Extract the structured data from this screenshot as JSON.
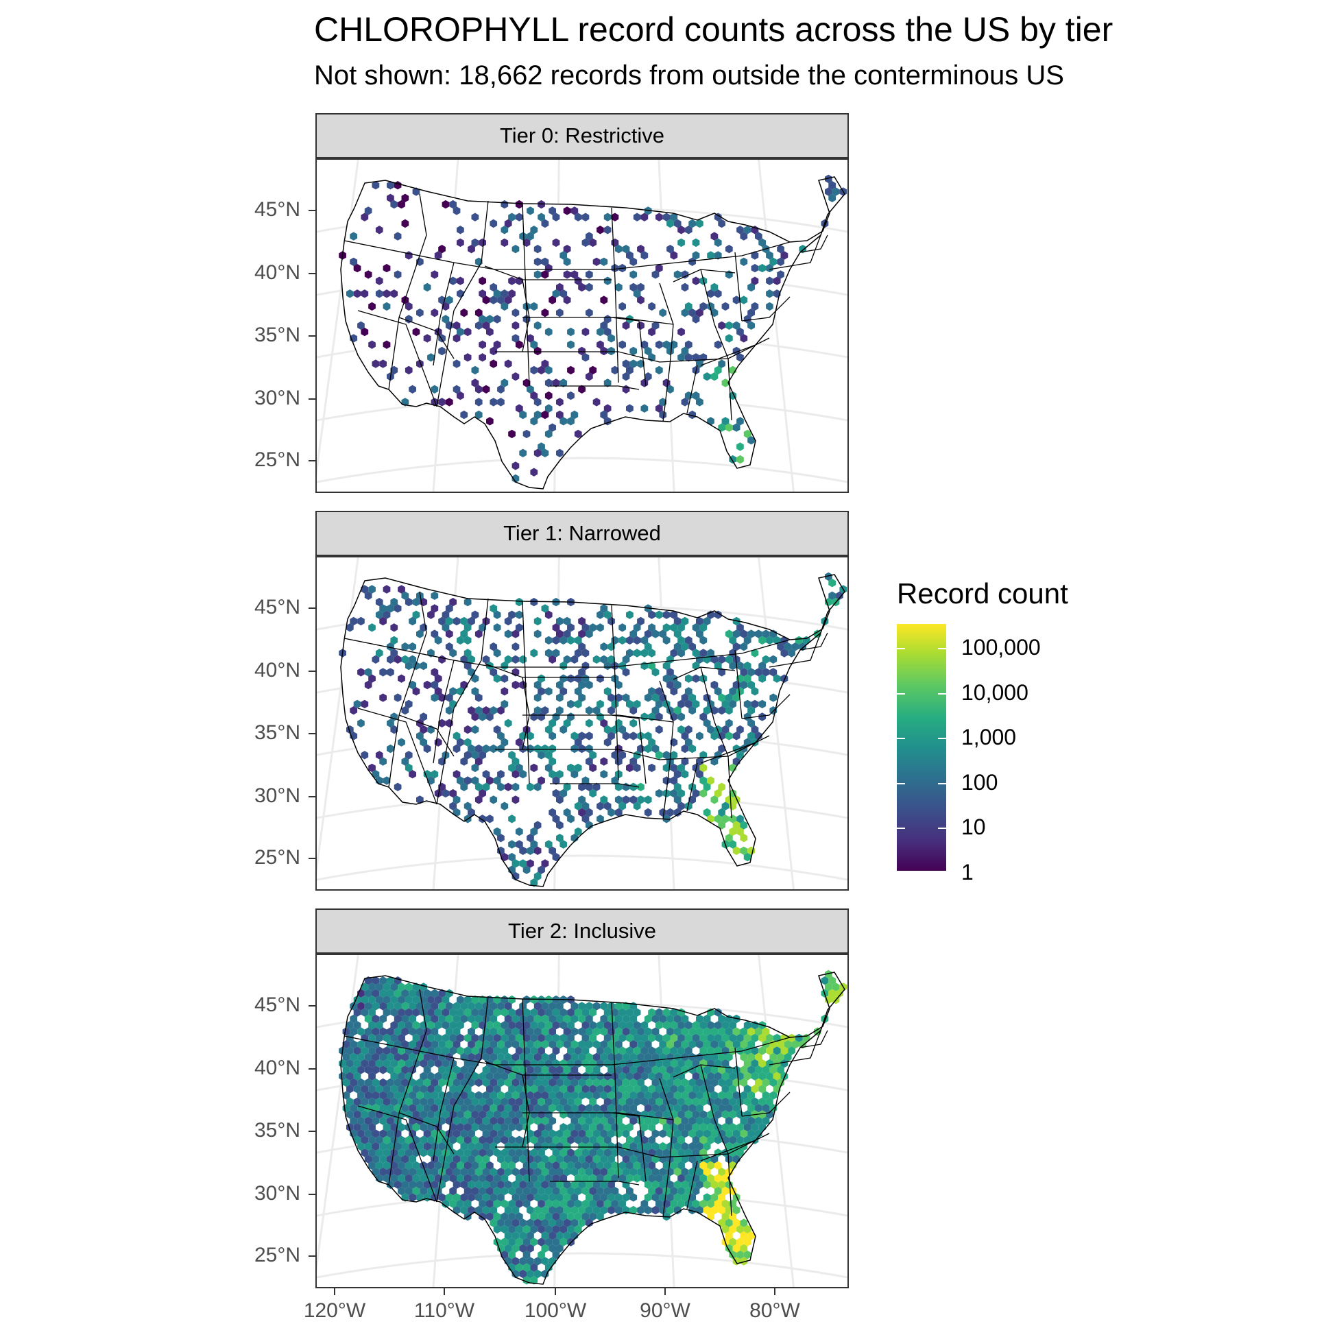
{
  "title": "CHLOROPHYLL record counts across the US by tier",
  "subtitle": "Not shown: 18,662 records from outside the conterminous US",
  "panels": [
    {
      "label": "Tier 0: Restrictive",
      "density": 0.28,
      "seed": 11
    },
    {
      "label": "Tier 1: Narrowed",
      "density": 0.45,
      "seed": 23
    },
    {
      "label": "Tier 2: Inclusive",
      "density": 0.92,
      "seed": 37
    }
  ],
  "axes": {
    "lat_labels": [
      "45°N",
      "40°N",
      "35°N",
      "30°N",
      "25°N"
    ],
    "lon_labels": [
      "120°W",
      "110°W",
      "100°W",
      "90°W",
      "80°W"
    ]
  },
  "legend": {
    "title": "Record count",
    "labels": [
      "100,000",
      "10,000",
      "1,000",
      "100",
      "10",
      "1"
    ],
    "scale": "log10"
  },
  "colors": {
    "viridis": [
      "#440154",
      "#472f7d",
      "#3b518b",
      "#2c718e",
      "#21908d",
      "#27ad81",
      "#5cc863",
      "#aadc32",
      "#fde725"
    ]
  }
}
